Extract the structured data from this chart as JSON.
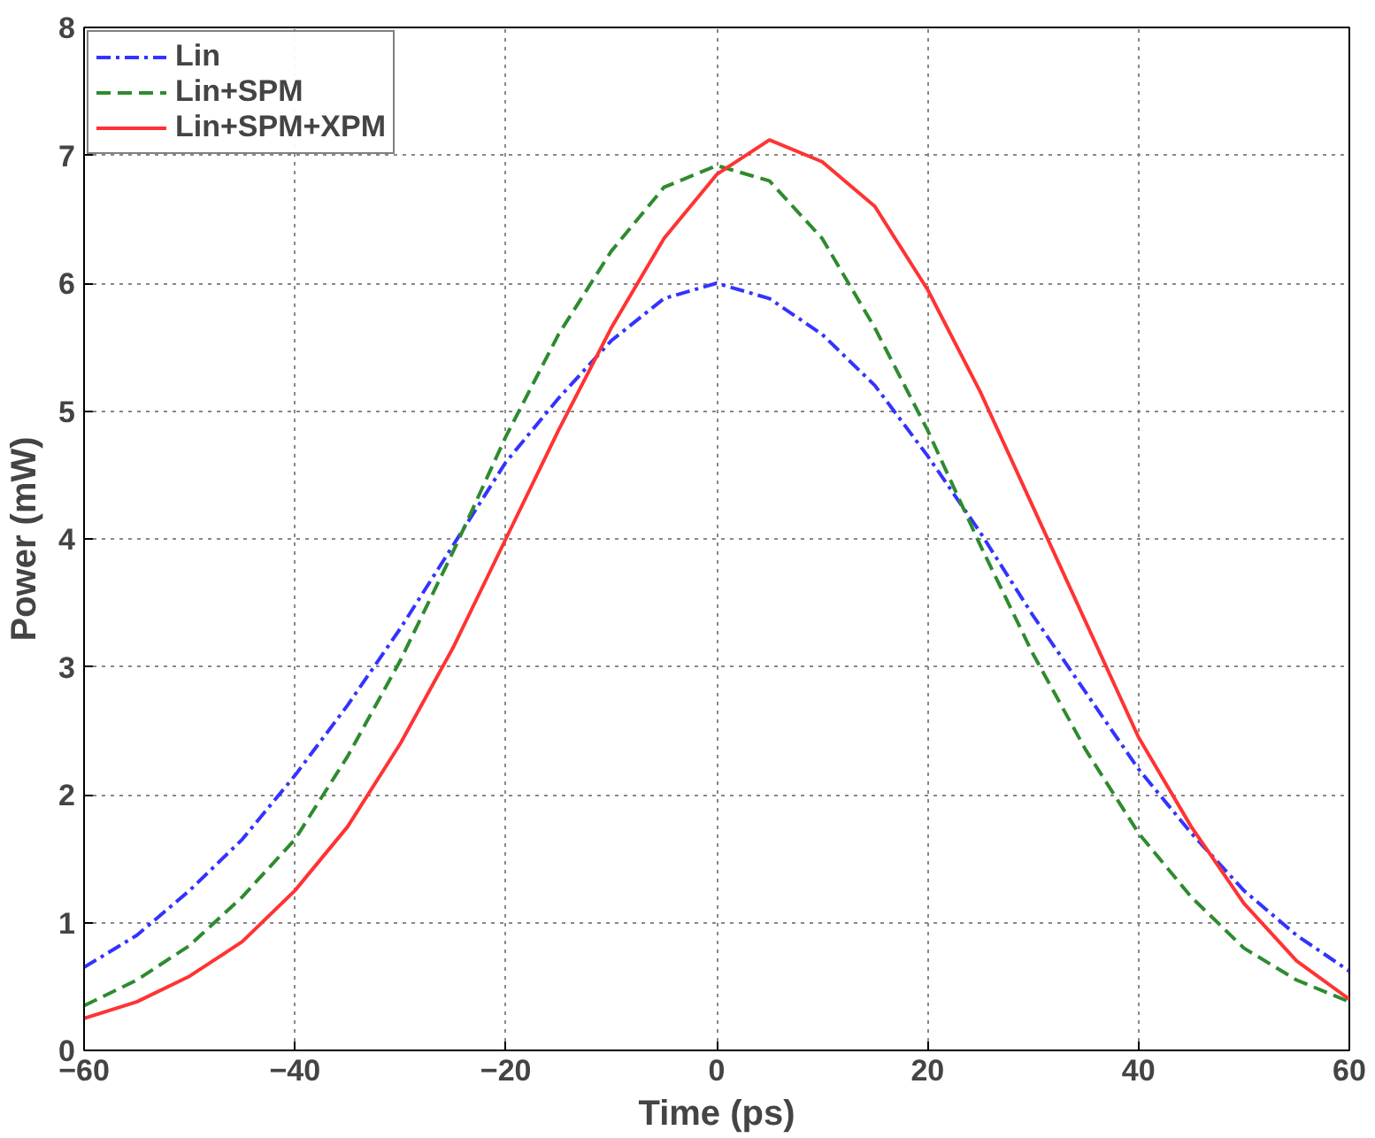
{
  "chart_data": {
    "type": "line",
    "xlabel": "Time (ps)",
    "ylabel": "Power (mW)",
    "x": [
      -60,
      -55,
      -50,
      -45,
      -40,
      -35,
      -30,
      -25,
      -20,
      -15,
      -10,
      -5,
      0,
      5,
      10,
      15,
      20,
      25,
      30,
      35,
      40,
      45,
      50,
      55,
      60
    ],
    "series": [
      {
        "name": "Lin",
        "color": "#3333ff",
        "line_style": "dashdot",
        "values": [
          0.65,
          0.9,
          1.25,
          1.65,
          2.15,
          2.7,
          3.3,
          3.95,
          4.6,
          5.1,
          5.55,
          5.88,
          6.0,
          5.88,
          5.6,
          5.2,
          4.65,
          4.05,
          3.4,
          2.8,
          2.2,
          1.7,
          1.25,
          0.9,
          0.62
        ]
      },
      {
        "name": "Lin+SPM",
        "color": "#2e8b2e",
        "line_style": "dashed",
        "values": [
          0.35,
          0.55,
          0.82,
          1.2,
          1.65,
          2.3,
          3.05,
          3.9,
          4.8,
          5.6,
          6.25,
          6.75,
          6.92,
          6.8,
          6.35,
          5.65,
          4.85,
          3.95,
          3.1,
          2.35,
          1.7,
          1.2,
          0.8,
          0.55,
          0.38
        ]
      },
      {
        "name": "Lin+SPM+XPM",
        "color": "#ff3333",
        "line_style": "solid",
        "values": [
          0.25,
          0.38,
          0.58,
          0.85,
          1.25,
          1.75,
          2.4,
          3.15,
          4.0,
          4.85,
          5.65,
          6.35,
          6.85,
          7.12,
          6.95,
          6.6,
          5.95,
          5.15,
          4.25,
          3.35,
          2.45,
          1.75,
          1.15,
          0.7,
          0.4
        ]
      }
    ],
    "xlim": [
      -60,
      60
    ],
    "xticks": [
      -60,
      -40,
      -20,
      0,
      20,
      40,
      60
    ],
    "ylim": [
      0,
      8
    ],
    "yticks": [
      0,
      1,
      2,
      3,
      4,
      5,
      6,
      7,
      8
    ],
    "grid": true,
    "legend": "top left"
  }
}
